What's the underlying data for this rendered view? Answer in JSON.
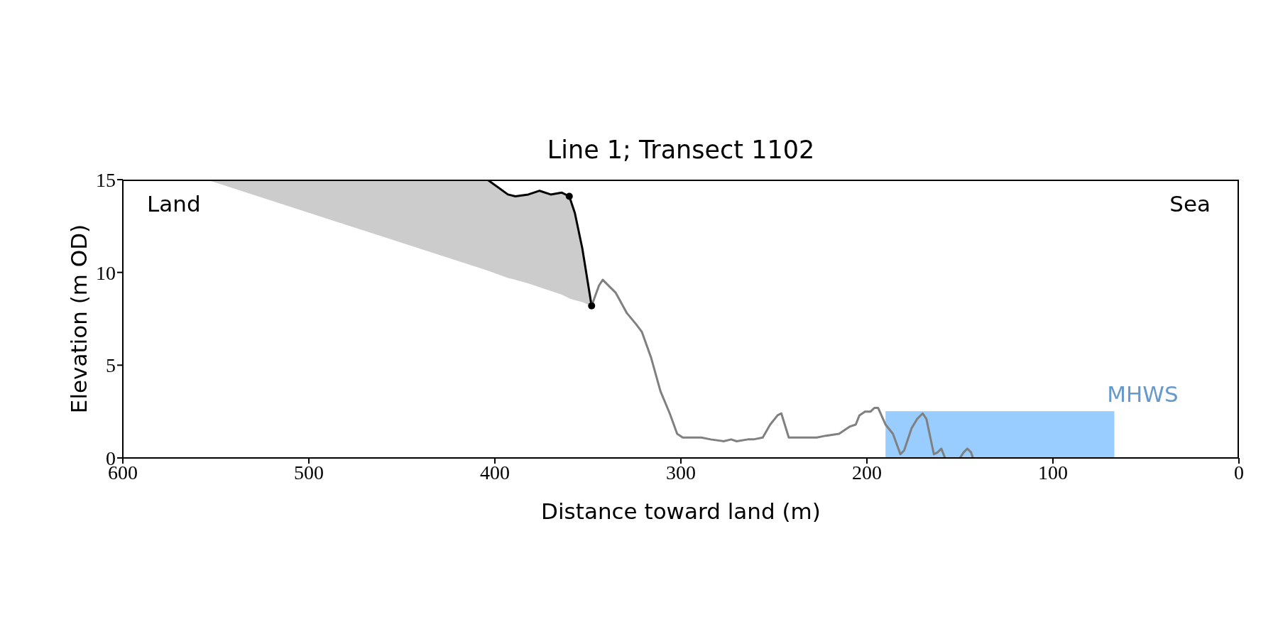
{
  "chart_data": {
    "type": "line",
    "title": "Line 1; Transect 1102",
    "xlabel": "Distance toward land (m)",
    "ylabel": "Elevation (m OD)",
    "annotations": [
      "Land",
      "Sea"
    ],
    "xlim": [
      600,
      0
    ],
    "xticks": [
      600,
      500,
      400,
      300,
      200,
      100,
      0
    ],
    "ylim": [
      0,
      15
    ],
    "yticks": [
      0,
      5,
      10,
      15
    ],
    "series": [
      {
        "color": "#000000",
        "marker": "none",
        "x": [
          555,
          404,
          393,
          389,
          382,
          376,
          370,
          364,
          360,
          357,
          353,
          348
        ],
        "values": [
          null,
          15,
          14.2,
          14.1,
          14.2,
          14.4,
          14.2,
          14.3,
          14.1,
          13.2,
          11.3,
          8.2
        ],
        "upper": [
          15,
          15,
          14.2,
          14.1,
          14.2,
          14.4,
          14.2,
          14.3,
          14.1,
          13.2,
          11.3,
          8.2
        ],
        "lower": [
          15,
          10.1,
          9.7,
          9.6,
          9.4,
          9.2,
          9.0,
          8.8,
          8.6,
          8.5,
          8.4,
          8.2
        ]
      },
      {
        "type": "area",
        "name": "MHWS",
        "color": "#99ccff",
        "x": [
          190,
          67
        ],
        "values": [
          2.5,
          2.5
        ]
      },
      {
        "color": "#808080",
        "marker": "none",
        "x": [
          348,
          344,
          342,
          338,
          335,
          329,
          324,
          321,
          316,
          311,
          306,
          302,
          299,
          292,
          289,
          284,
          277,
          273,
          270,
          264,
          261,
          256,
          252,
          248,
          246,
          242,
          240,
          237,
          233,
          227,
          222,
          215,
          209,
          206,
          204,
          201,
          198,
          196,
          194,
          190,
          186,
          182,
          180,
          176,
          173,
          170,
          168,
          164,
          162,
          160,
          158,
          154,
          150,
          148,
          146,
          144,
          143
        ],
        "values": [
          8.2,
          9.3,
          9.6,
          9.2,
          8.9,
          7.8,
          7.2,
          6.8,
          5.4,
          3.6,
          2.4,
          1.3,
          1.1,
          1.1,
          1.1,
          1.0,
          0.9,
          1.0,
          0.9,
          1.0,
          1.0,
          1.1,
          1.8,
          2.3,
          2.4,
          1.1,
          1.1,
          1.1,
          1.1,
          1.1,
          1.2,
          1.3,
          1.7,
          1.8,
          2.3,
          2.5,
          2.5,
          2.7,
          2.7,
          1.8,
          1.3,
          0.2,
          0.4,
          1.6,
          2.1,
          2.4,
          2.1,
          0.2,
          0.3,
          0.5,
          0,
          null,
          0,
          0.3,
          0.5,
          0.3,
          0
        ]
      },
      {
        "type": "scatter",
        "color": "#000000",
        "marker": "circle",
        "x": [
          360,
          348
        ],
        "values": [
          14.1,
          8.2
        ]
      }
    ]
  }
}
